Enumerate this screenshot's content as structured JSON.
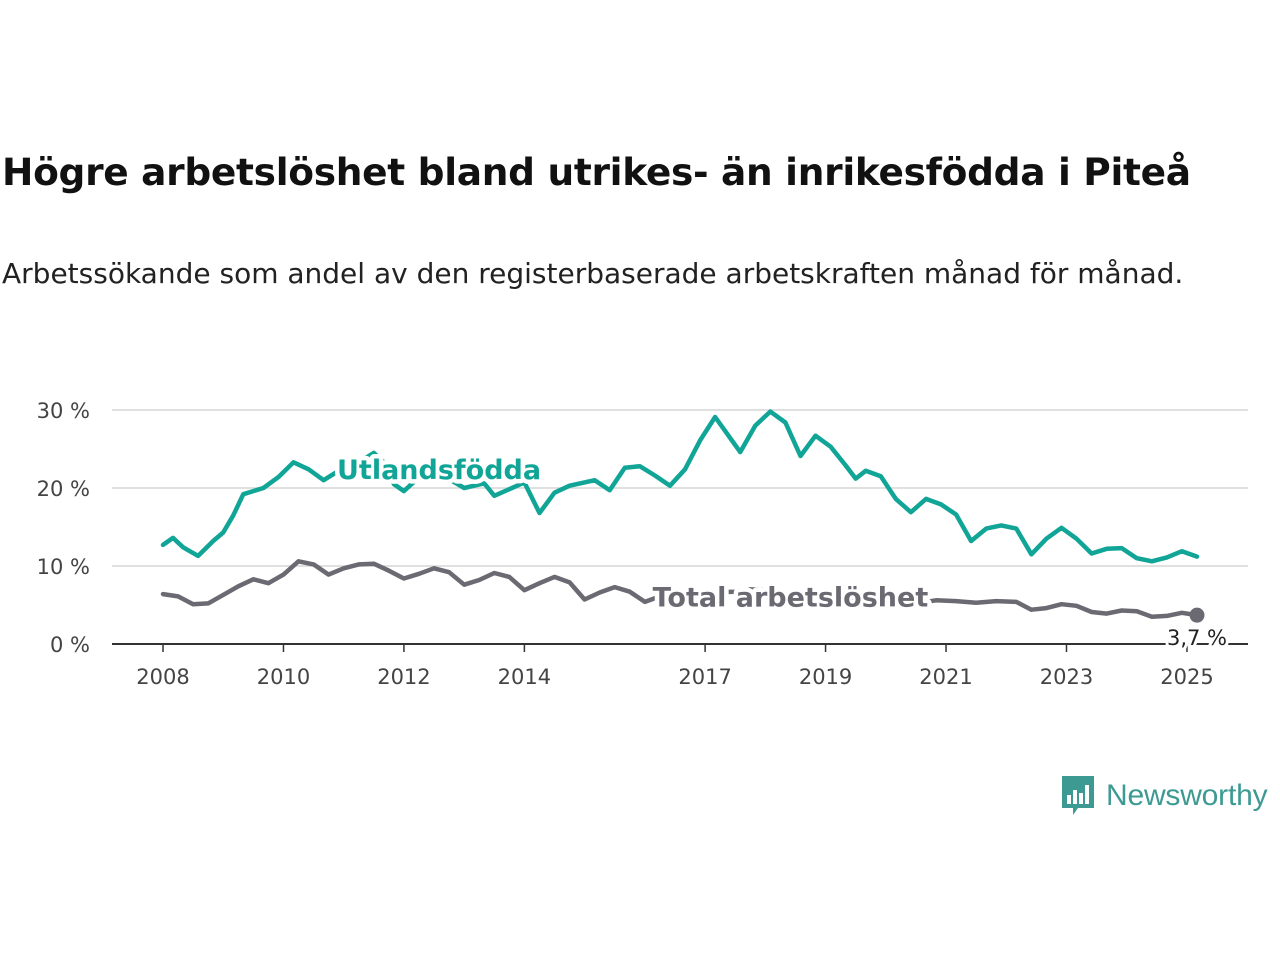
{
  "title": "Högre arbetslöshet bland utrikes- än inrikesfödda i Piteå",
  "subtitle": "Arbetssökande som andel av den registerbaserade arbetskraften månad för månad.",
  "brand": {
    "name": "Newsworthy",
    "icon": "newsworthy-bar-chart-logo-icon"
  },
  "colors": {
    "utlandsfodda": "#10a596",
    "total": "#6b6a72",
    "grid": "#d5d5d5",
    "axis": "#333333"
  },
  "chart_data": {
    "type": "line",
    "x_axis": {
      "type": "date",
      "ticks": [
        "2008",
        "2010",
        "2012",
        "2014",
        "2017",
        "2019",
        "2021",
        "2023",
        "2025"
      ]
    },
    "y_axis": {
      "ticks": [
        "0 %",
        "10 %",
        "20 %",
        "30 %"
      ],
      "ylim": [
        0,
        30
      ],
      "unit": "%"
    },
    "grid": "horizontal",
    "end_label": "3,7 %",
    "series": [
      {
        "name": "Utlandsfödda",
        "label_at": "2012-08",
        "points": [
          [
            "2008-01",
            12.7
          ],
          [
            "2008-03",
            13.6
          ],
          [
            "2008-05",
            12.4
          ],
          [
            "2008-08",
            11.3
          ],
          [
            "2008-11",
            13.2
          ],
          [
            "2009-01",
            14.3
          ],
          [
            "2009-03",
            16.5
          ],
          [
            "2009-05",
            19.2
          ],
          [
            "2009-07",
            19.6
          ],
          [
            "2009-09",
            20.0
          ],
          [
            "2009-12",
            21.4
          ],
          [
            "2010-03",
            23.3
          ],
          [
            "2010-06",
            22.4
          ],
          [
            "2010-09",
            21.0
          ],
          [
            "2010-12",
            22.2
          ],
          [
            "2011-02",
            23.2
          ],
          [
            "2011-05",
            23.7
          ],
          [
            "2011-07",
            24.5
          ],
          [
            "2011-09",
            23.3
          ],
          [
            "2011-11",
            20.5
          ],
          [
            "2012-01",
            19.6
          ],
          [
            "2012-03",
            20.8
          ],
          [
            "2012-06",
            21.6
          ],
          [
            "2012-08",
            21.9
          ],
          [
            "2013-01",
            20.0
          ],
          [
            "2013-05",
            20.6
          ],
          [
            "2013-07",
            19.0
          ],
          [
            "2014-01",
            20.7
          ],
          [
            "2014-04",
            16.8
          ],
          [
            "2014-07",
            19.4
          ],
          [
            "2014-10",
            20.3
          ],
          [
            "2015-03",
            21.0
          ],
          [
            "2015-06",
            19.7
          ],
          [
            "2015-09",
            22.6
          ],
          [
            "2015-12",
            22.8
          ],
          [
            "2016-03",
            21.6
          ],
          [
            "2016-06",
            20.3
          ],
          [
            "2016-09",
            22.4
          ],
          [
            "2016-12",
            26.1
          ],
          [
            "2017-03",
            29.1
          ],
          [
            "2017-05",
            27.3
          ],
          [
            "2017-08",
            24.6
          ],
          [
            "2017-11",
            28.0
          ],
          [
            "2018-02",
            29.8
          ],
          [
            "2018-05",
            28.4
          ],
          [
            "2018-08",
            24.1
          ],
          [
            "2018-11",
            26.7
          ],
          [
            "2019-02",
            25.3
          ],
          [
            "2019-05",
            22.9
          ],
          [
            "2019-07",
            21.2
          ],
          [
            "2019-09",
            22.2
          ],
          [
            "2019-12",
            21.5
          ],
          [
            "2020-03",
            18.6
          ],
          [
            "2020-06",
            16.9
          ],
          [
            "2020-09",
            18.6
          ],
          [
            "2020-12",
            17.9
          ],
          [
            "2021-03",
            16.6
          ],
          [
            "2021-06",
            13.2
          ],
          [
            "2021-09",
            14.8
          ],
          [
            "2021-12",
            15.2
          ],
          [
            "2022-03",
            14.8
          ],
          [
            "2022-06",
            11.5
          ],
          [
            "2022-09",
            13.5
          ],
          [
            "2022-12",
            14.9
          ],
          [
            "2023-03",
            13.5
          ],
          [
            "2023-06",
            11.6
          ],
          [
            "2023-09",
            12.2
          ],
          [
            "2023-12",
            12.3
          ],
          [
            "2024-03",
            11.0
          ],
          [
            "2024-06",
            10.6
          ],
          [
            "2024-09",
            11.1
          ],
          [
            "2024-12",
            11.9
          ],
          [
            "2025-03",
            11.2
          ]
        ]
      },
      {
        "name": "Total arbetslöshet",
        "label_at": "2018-06",
        "points": [
          [
            "2008-01",
            6.4
          ],
          [
            "2008-04",
            6.1
          ],
          [
            "2008-07",
            5.1
          ],
          [
            "2008-10",
            5.2
          ],
          [
            "2009-01",
            6.3
          ],
          [
            "2009-04",
            7.4
          ],
          [
            "2009-07",
            8.3
          ],
          [
            "2009-10",
            7.8
          ],
          [
            "2010-01",
            8.9
          ],
          [
            "2010-04",
            10.6
          ],
          [
            "2010-07",
            10.2
          ],
          [
            "2010-10",
            8.9
          ],
          [
            "2011-01",
            9.7
          ],
          [
            "2011-04",
            10.2
          ],
          [
            "2011-07",
            10.3
          ],
          [
            "2011-10",
            9.4
          ],
          [
            "2012-01",
            8.4
          ],
          [
            "2012-04",
            9.0
          ],
          [
            "2012-07",
            9.7
          ],
          [
            "2012-10",
            9.2
          ],
          [
            "2013-01",
            7.6
          ],
          [
            "2013-04",
            8.2
          ],
          [
            "2013-07",
            9.1
          ],
          [
            "2013-10",
            8.6
          ],
          [
            "2014-01",
            6.9
          ],
          [
            "2014-04",
            7.8
          ],
          [
            "2014-07",
            8.6
          ],
          [
            "2014-10",
            7.9
          ],
          [
            "2015-01",
            5.7
          ],
          [
            "2015-04",
            6.6
          ],
          [
            "2015-07",
            7.3
          ],
          [
            "2015-10",
            6.7
          ],
          [
            "2016-01",
            5.4
          ],
          [
            "2016-04",
            6.1
          ],
          [
            "2016-07",
            6.8
          ],
          [
            "2016-10",
            5.9
          ],
          [
            "2017-01",
            6.6
          ],
          [
            "2017-07",
            6.7
          ],
          [
            "2017-10",
            7.0
          ],
          [
            "2018-02",
            6.9
          ],
          [
            "2018-06",
            6.1
          ],
          [
            "2018-10",
            5.9
          ],
          [
            "2019-03",
            5.9
          ],
          [
            "2019-07",
            5.4
          ],
          [
            "2019-11",
            5.5
          ],
          [
            "2020-03",
            5.8
          ],
          [
            "2020-07",
            5.2
          ],
          [
            "2020-11",
            5.6
          ],
          [
            "2021-03",
            5.5
          ],
          [
            "2021-07",
            5.3
          ],
          [
            "2021-11",
            5.5
          ],
          [
            "2022-03",
            5.4
          ],
          [
            "2022-06",
            4.4
          ],
          [
            "2022-09",
            4.6
          ],
          [
            "2022-12",
            5.1
          ],
          [
            "2023-03",
            4.9
          ],
          [
            "2023-06",
            4.1
          ],
          [
            "2023-09",
            3.9
          ],
          [
            "2023-12",
            4.3
          ],
          [
            "2024-03",
            4.2
          ],
          [
            "2024-06",
            3.5
          ],
          [
            "2024-09",
            3.6
          ],
          [
            "2024-12",
            4.0
          ],
          [
            "2025-03",
            3.7
          ]
        ]
      }
    ]
  }
}
